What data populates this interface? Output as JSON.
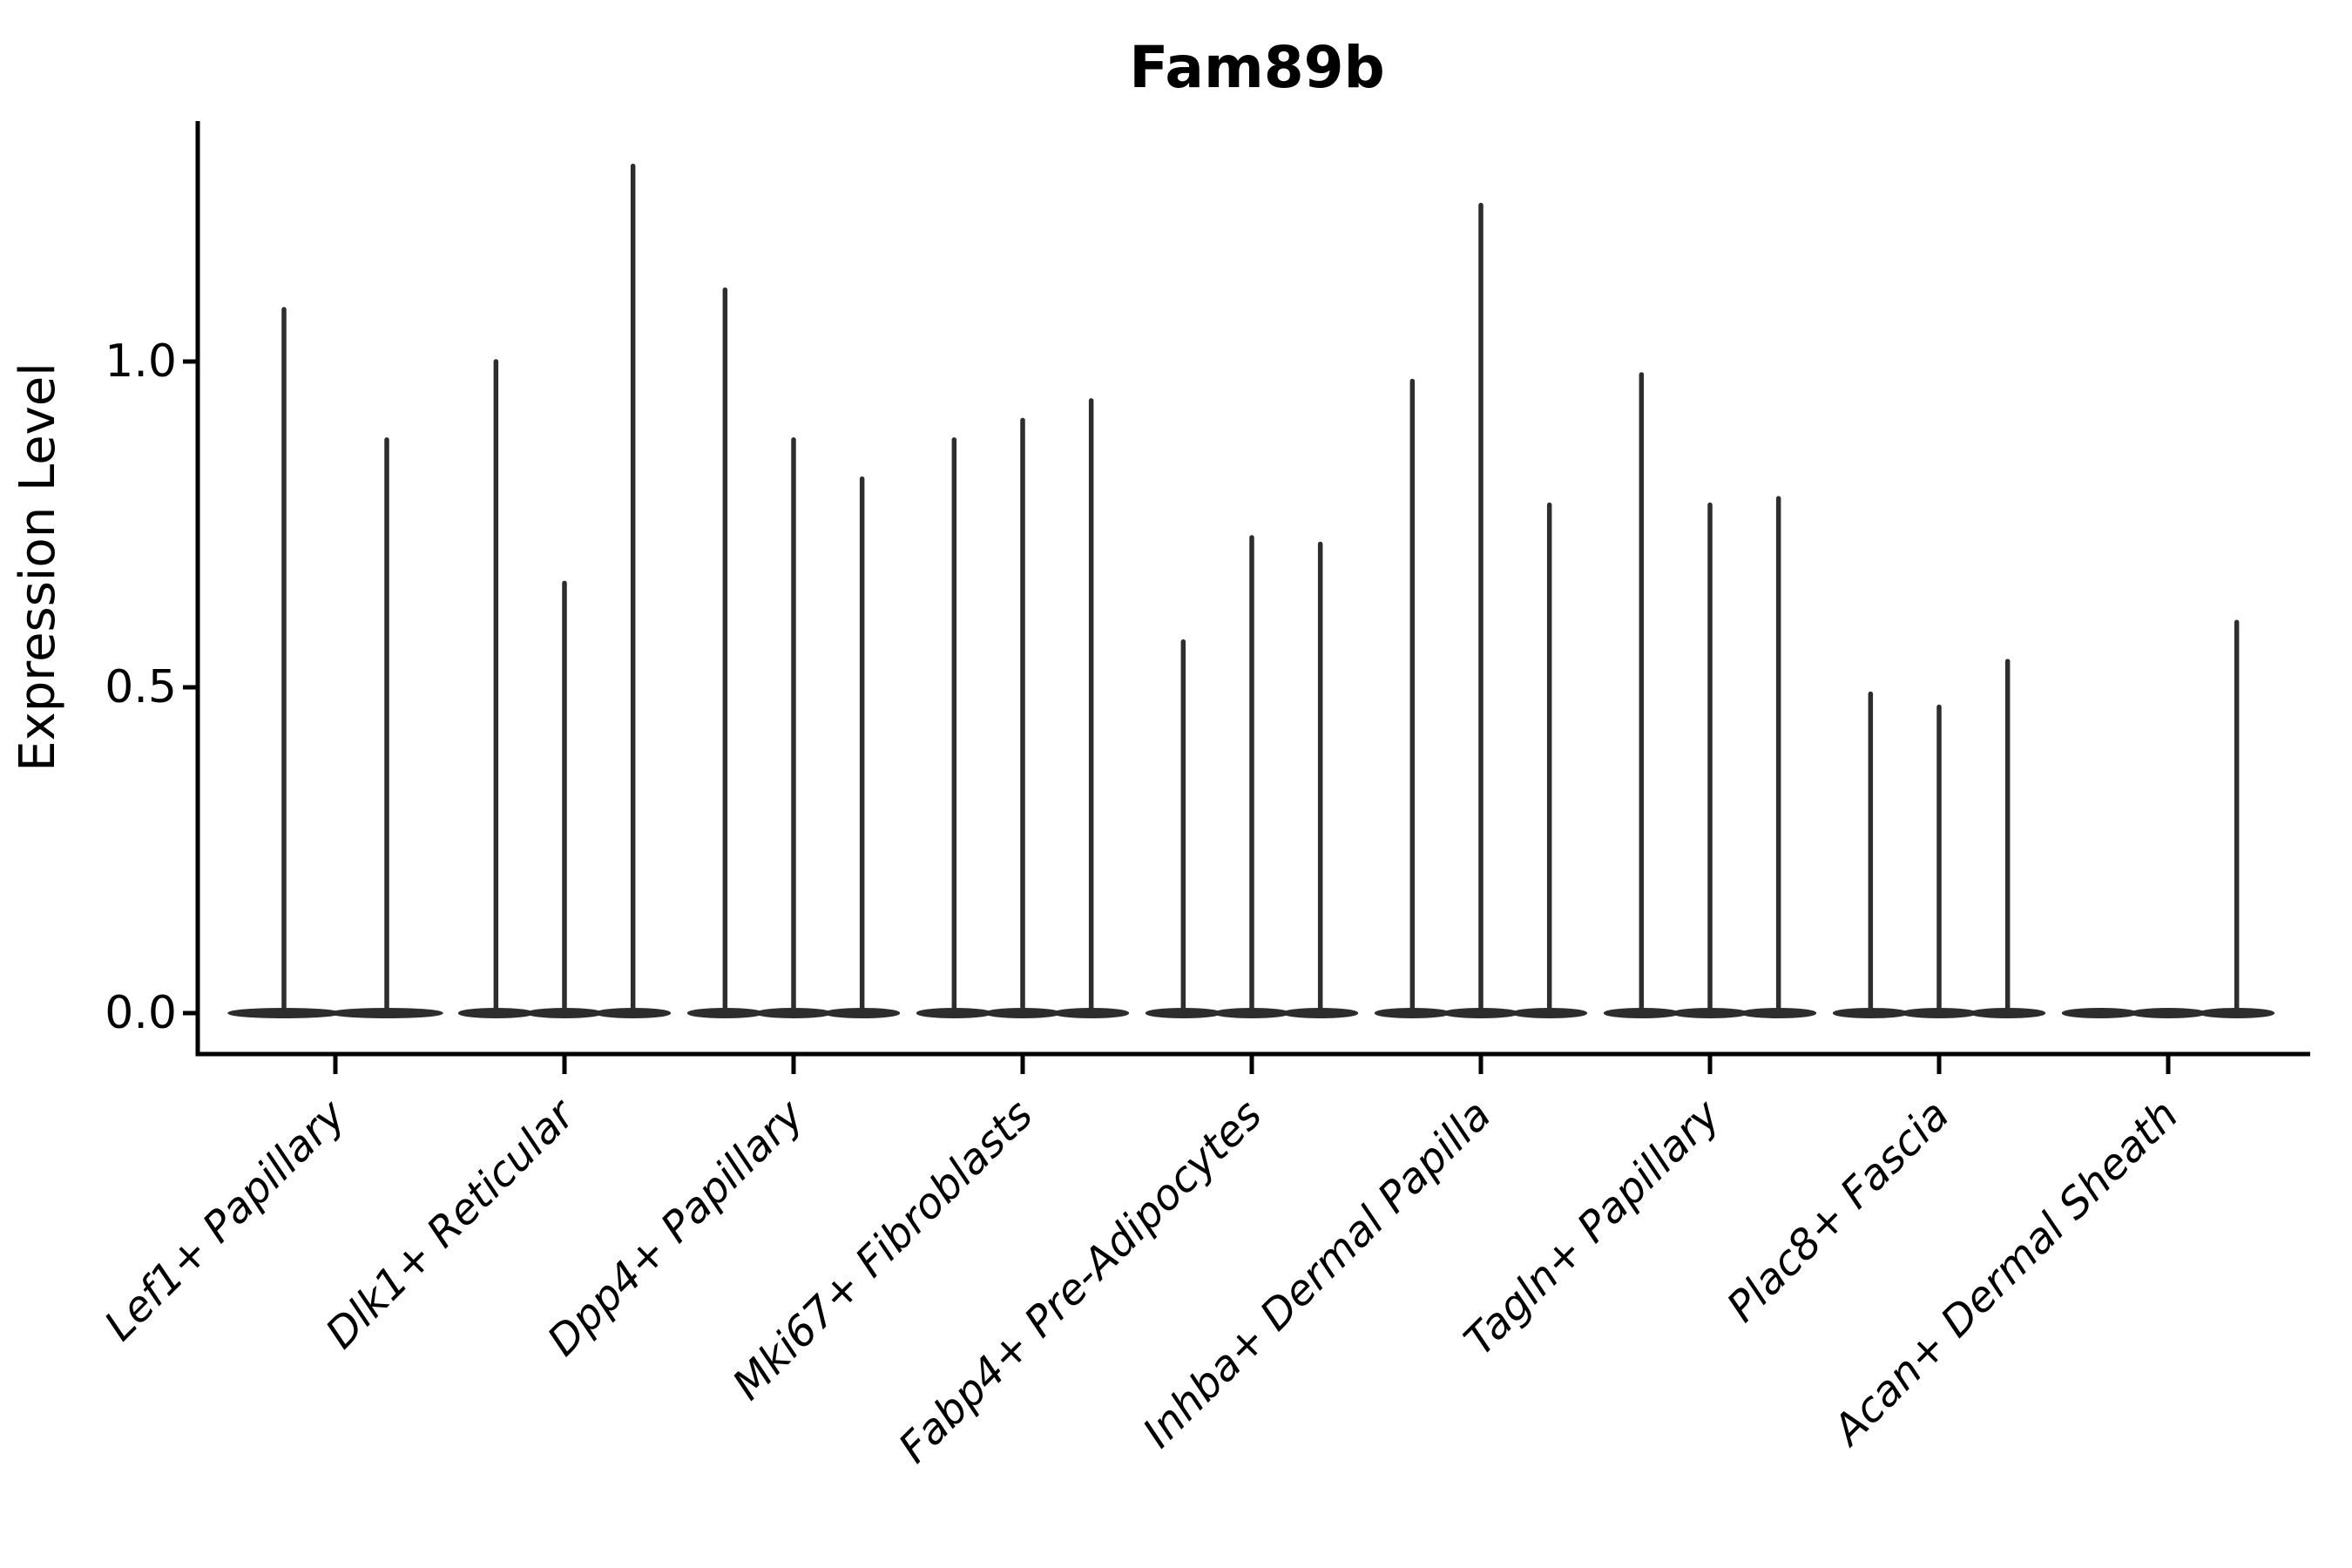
{
  "chart_data": {
    "type": "violin",
    "title": "Fam89b",
    "ylabel": "Expression Level",
    "xlabel": "",
    "ylim": [
      -0.065,
      1.37
    ],
    "yticks": [
      0.0,
      0.5,
      1.0
    ],
    "ytick_labels": [
      "0.0",
      "0.5",
      "1.0"
    ],
    "grid": false,
    "legend": false,
    "categories": [
      "Lef1+ Papillary",
      "Dlk1+ Reticular",
      "Dpp4+ Papillary",
      "Mki67+ Fibroblasts",
      "Fabp4+ Pre-Adipocytes",
      "Inhba+ Dermal Papilla",
      "Tagln+ Papillary",
      "Plac8+ Fascia",
      "Acan+ Dermal Sheath"
    ],
    "groups": [
      {
        "label": "Lef1+ Papillary",
        "violin_max_values": [
          1.08,
          0.88
        ]
      },
      {
        "label": "Dlk1+ Reticular",
        "violin_max_values": [
          1.0,
          0.66,
          1.3
        ]
      },
      {
        "label": "Dpp4+ Papillary",
        "violin_max_values": [
          1.11,
          0.88,
          0.82
        ]
      },
      {
        "label": "Mki67+ Fibroblasts",
        "violin_max_values": [
          0.88,
          0.91,
          0.94
        ]
      },
      {
        "label": "Fabp4+ Pre-Adipocytes",
        "violin_max_values": [
          0.57,
          0.73,
          0.72
        ]
      },
      {
        "label": "Inhba+ Dermal Papilla",
        "violin_max_values": [
          0.97,
          1.24,
          0.78
        ]
      },
      {
        "label": "Tagln+ Papillary",
        "violin_max_values": [
          0.98,
          0.78,
          0.79
        ]
      },
      {
        "label": "Plac8+ Fascia",
        "violin_max_values": [
          0.49,
          0.47,
          0.54
        ]
      },
      {
        "label": "Acan+ Dermal Sheath",
        "violin_max_values": [
          0.0,
          0.0,
          0.6
        ]
      }
    ],
    "colors": {
      "violin": "#2d2d2d",
      "axis": "#000000",
      "text": "#000000",
      "background": "#ffffff"
    }
  }
}
